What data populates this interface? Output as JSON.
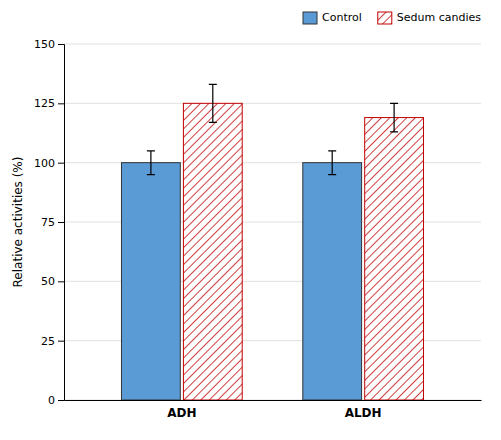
{
  "chart_data": {
    "type": "bar",
    "categories": [
      "ADH",
      "ALDH"
    ],
    "series": [
      {
        "name": "Control",
        "color": "#5B9BD5",
        "values": [
          100,
          100
        ],
        "errors": [
          5,
          5
        ]
      },
      {
        "name": "Sedum candies",
        "color": "#C00000",
        "values": [
          125,
          119
        ],
        "errors": [
          8,
          6
        ]
      }
    ],
    "ylabel": "Relative activities (%)",
    "ylim": [
      0,
      150
    ],
    "yticks": [
      0,
      25,
      50,
      75,
      100,
      125,
      150
    ],
    "grid": true,
    "legend": "upper right"
  }
}
